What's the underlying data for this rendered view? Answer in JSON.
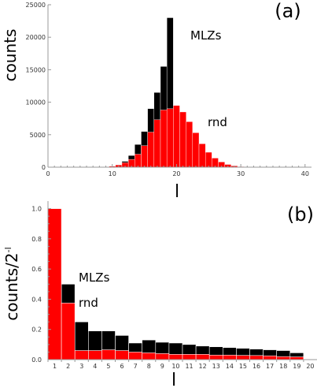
{
  "chart_data": [
    {
      "type": "bar",
      "panel_label": "(a)",
      "ylabel": "counts",
      "xlabel": "l",
      "xlim": [
        0,
        41
      ],
      "ylim": [
        0,
        25000
      ],
      "xticks": [
        0,
        10,
        20,
        30,
        40
      ],
      "yticks": [
        0,
        5000,
        10000,
        15000,
        20000,
        25000
      ],
      "x": [
        7,
        8,
        9,
        10,
        11,
        12,
        13,
        14,
        15,
        16,
        17,
        18,
        19,
        20,
        21,
        22,
        23,
        24,
        25,
        26,
        27,
        28,
        29,
        30
      ],
      "series": [
        {
          "name": "MLZs",
          "color": "#000000",
          "values": [
            5,
            20,
            60,
            150,
            350,
            900,
            1800,
            3500,
            5500,
            9000,
            11500,
            15500,
            23000,
            9500,
            7500,
            6000,
            4500,
            3300,
            2300,
            1400,
            800,
            420,
            200,
            100
          ]
        },
        {
          "name": "rnd",
          "color": "#ff0000",
          "values": [
            5,
            20,
            60,
            150,
            350,
            700,
            1200,
            2000,
            3300,
            5400,
            7300,
            8800,
            9000,
            9500,
            8500,
            7000,
            5300,
            3600,
            2300,
            1400,
            800,
            420,
            200,
            100
          ]
        }
      ],
      "annotations": [
        {
          "text": "MLZs"
        },
        {
          "text": "rnd"
        }
      ]
    },
    {
      "type": "bar",
      "panel_label": "(b)",
      "ylabel": "counts/2^-l",
      "ylabel_base": "counts/2",
      "ylabel_sup": "-l",
      "xlabel": "l",
      "ylim": [
        0,
        1.05
      ],
      "yticks": [
        "0.0",
        "0.2",
        "0.4",
        "0.6",
        "0.8",
        "1.0"
      ],
      "categories": [
        "1",
        "2",
        "3",
        "4",
        "5",
        "6",
        "7",
        "8",
        "9",
        "10",
        "11",
        "12",
        "13",
        "14",
        "15",
        "16",
        "17",
        "18",
        "19",
        "20"
      ],
      "series": [
        {
          "name": "MLZs",
          "color": "#000000",
          "values": [
            1.0,
            0.5,
            0.25,
            0.19,
            0.19,
            0.16,
            0.11,
            0.13,
            0.115,
            0.11,
            0.1,
            0.09,
            0.085,
            0.08,
            0.075,
            0.07,
            0.065,
            0.06,
            0.045,
            0.0
          ]
        },
        {
          "name": "rnd",
          "color": "#ff0000",
          "values": [
            1.0,
            0.375,
            0.06,
            0.06,
            0.065,
            0.06,
            0.05,
            0.045,
            0.04,
            0.035,
            0.035,
            0.035,
            0.03,
            0.03,
            0.028,
            0.027,
            0.025,
            0.02,
            0.018,
            0.0
          ]
        }
      ],
      "annotations": [
        {
          "text": "MLZs"
        },
        {
          "text": "rnd"
        }
      ]
    }
  ]
}
